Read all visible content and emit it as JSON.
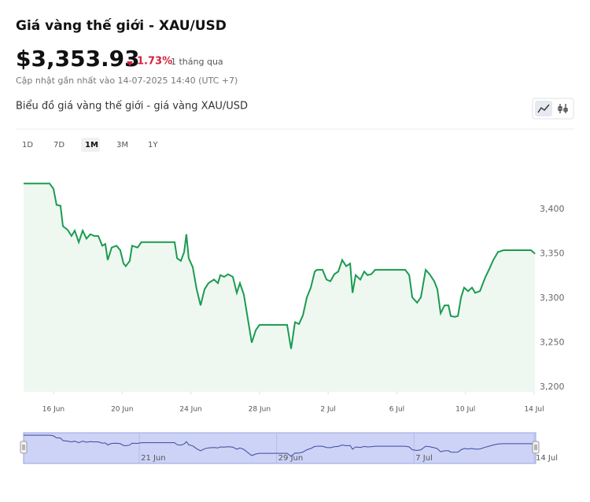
{
  "header": {
    "title": "Giá vàng thế giới - XAU/USD",
    "price": "$3,353.93",
    "change": "1.73%",
    "period": "1 tháng qua",
    "updated": "Cập nhật gần nhất vào 14-07-2025 14:40 (UTC +7)",
    "chart_heading": "Biểu đồ giá vàng thế giới - giá vàng XAU/USD"
  },
  "ranges": {
    "options": [
      "1D",
      "7D",
      "1M",
      "3M",
      "1Y"
    ],
    "active": "1M"
  },
  "chart_data": {
    "type": "area",
    "color": "#1a9b50",
    "fill": "#eef8f1",
    "grid": false,
    "x": [
      14.26,
      14.76,
      15.27,
      15.77,
      16.0,
      16.18,
      16.41,
      16.55,
      16.82,
      17.05,
      17.24,
      17.47,
      17.7,
      17.92,
      18.15,
      18.38,
      18.61,
      18.84,
      19.02,
      19.16,
      19.39,
      19.67,
      19.89,
      20.08,
      20.21,
      20.44,
      20.58,
      20.9,
      21.12,
      23.06,
      23.2,
      23.42,
      23.61,
      23.74,
      23.88,
      24.11,
      24.34,
      24.57,
      24.8,
      25.03,
      25.35,
      25.58,
      25.72,
      25.94,
      26.17,
      26.45,
      26.68,
      26.86,
      27.09,
      27.32,
      27.55,
      27.78,
      28.0,
      29.61,
      29.84,
      30.07,
      30.3,
      30.53,
      30.76,
      30.99,
      31.22,
      31.35,
      31.67,
      31.9,
      32.13,
      32.36,
      32.59,
      32.82,
      33.05,
      33.28,
      33.42,
      33.6,
      33.87,
      34.1,
      34.29,
      34.51,
      34.74,
      36.49,
      36.72,
      36.9,
      37.18,
      37.4,
      37.68,
      37.91,
      38.18,
      38.36,
      38.55,
      38.78,
      39.01,
      39.14,
      39.37,
      39.56,
      39.74,
      39.92,
      40.15,
      40.38,
      40.56,
      40.84,
      41.16,
      41.39,
      41.62,
      41.89,
      42.21,
      43.82,
      44.05
    ],
    "values": [
      3429,
      3429,
      3429,
      3429,
      3423,
      3405,
      3404,
      3381,
      3377,
      3370,
      3376,
      3363,
      3376,
      3367,
      3372,
      3370,
      3370,
      3359,
      3361,
      3343,
      3357,
      3359,
      3354,
      3339,
      3336,
      3342,
      3359,
      3357,
      3363,
      3363,
      3345,
      3342,
      3352,
      3372,
      3345,
      3335,
      3310,
      3292,
      3310,
      3317,
      3321,
      3317,
      3326,
      3324,
      3327,
      3324,
      3306,
      3317,
      3304,
      3277,
      3250,
      3264,
      3270,
      3270,
      3243,
      3273,
      3271,
      3281,
      3301,
      3312,
      3330,
      3332,
      3332,
      3321,
      3319,
      3327,
      3330,
      3343,
      3336,
      3339,
      3306,
      3326,
      3321,
      3330,
      3326,
      3327,
      3332,
      3332,
      3326,
      3301,
      3295,
      3301,
      3332,
      3327,
      3319,
      3310,
      3283,
      3292,
      3292,
      3280,
      3279,
      3280,
      3301,
      3312,
      3308,
      3312,
      3306,
      3308,
      3324,
      3333,
      3343,
      3352,
      3354,
      3354,
      3350
    ],
    "xlim": [
      14.26,
      44.09
    ],
    "xticks": [
      {
        "value": 16,
        "label": "16 Jun"
      },
      {
        "value": 20,
        "label": "20 Jun"
      },
      {
        "value": 24,
        "label": "24 Jun"
      },
      {
        "value": 28,
        "label": "28 Jun"
      },
      {
        "value": 32,
        "label": "2 Jul"
      },
      {
        "value": 36,
        "label": "6 Jul"
      },
      {
        "value": 40,
        "label": "10 Jul"
      },
      {
        "value": 44,
        "label": "14 Jul"
      }
    ],
    "ylim": [
      3194.7,
      3436.3
    ],
    "yticks": [
      {
        "value": 3200,
        "label": "3,200"
      },
      {
        "value": 3250,
        "label": "3,250"
      },
      {
        "value": 3300,
        "label": "3,300"
      },
      {
        "value": 3350,
        "label": "3,350"
      },
      {
        "value": 3400,
        "label": "3,400"
      }
    ]
  },
  "navigator": {
    "color": "#3a4aa0",
    "fill": "#cdd3f6",
    "xticks": [
      {
        "value": 21,
        "label": "21 Jun"
      },
      {
        "value": 29,
        "label": "29 Jun"
      },
      {
        "value": 37,
        "label": "7 Jul"
      },
      {
        "value": 44,
        "label": "14 Jul"
      }
    ]
  }
}
